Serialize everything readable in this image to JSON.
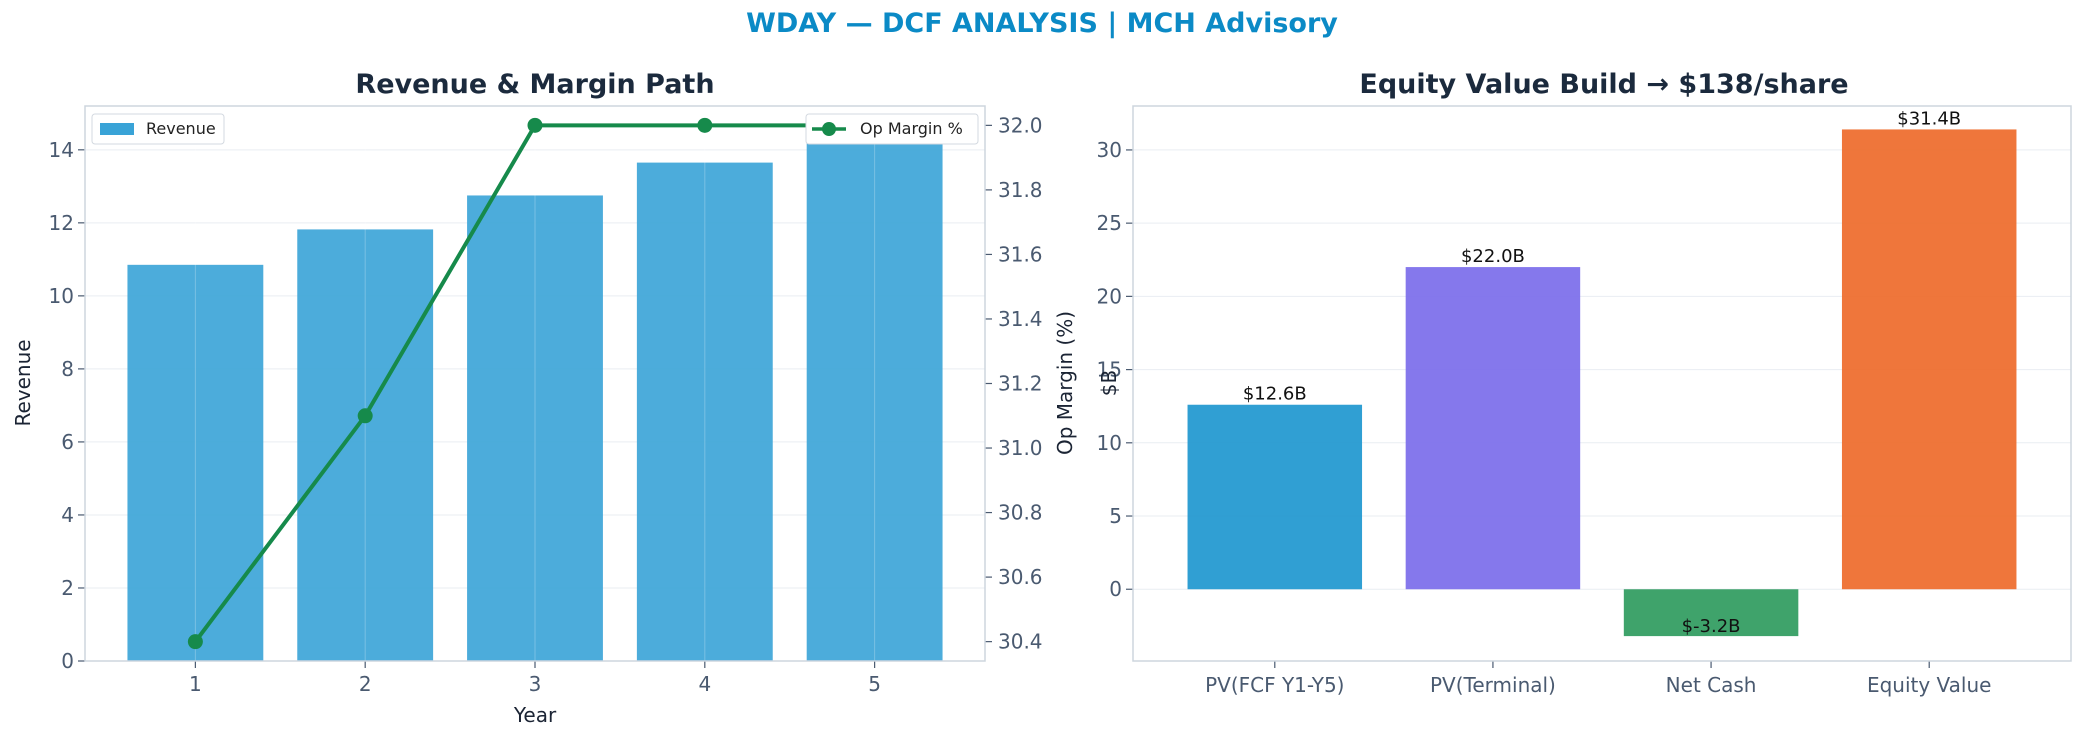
{
  "figure": {
    "title": "WDAY — DCF ANALYSIS | MCH Advisory"
  },
  "chart_data": [
    {
      "type": "bar",
      "title": "Revenue & Margin Path",
      "xlabel": "Year",
      "ylabel": "Revenue",
      "y2label": "Op Margin (%)",
      "categories": [
        "1",
        "2",
        "3",
        "4",
        "5"
      ],
      "ylim": [
        0,
        15.2
      ],
      "yticks": [
        0,
        2,
        4,
        6,
        8,
        10,
        12,
        14
      ],
      "y2lim": [
        30.34,
        32.06
      ],
      "y2ticks": [
        30.4,
        30.6,
        30.8,
        31.0,
        31.2,
        31.4,
        31.6,
        31.8,
        32.0
      ],
      "grid": true,
      "series": [
        {
          "name": "Revenue",
          "type": "bar",
          "axis": "left",
          "color": "#39a3d7",
          "values": [
            10.85,
            11.82,
            12.75,
            13.65,
            14.7
          ]
        },
        {
          "name": "Op Margin %",
          "type": "line",
          "axis": "right",
          "color": "#168a4b",
          "values": [
            30.4,
            31.1,
            32.0,
            32.0,
            32.0
          ]
        }
      ],
      "legend": [
        {
          "label": "Revenue",
          "placement": "top-left"
        },
        {
          "label": "Op Margin %",
          "placement": "top-right"
        }
      ]
    },
    {
      "type": "bar",
      "title": "Equity Value Build → $138/share",
      "xlabel": "",
      "ylabel": "$B",
      "categories": [
        "PV(FCF Y1-Y5)",
        "PV(Terminal)",
        "Net Cash",
        "Equity Value"
      ],
      "values": [
        12.6,
        22.0,
        -3.2,
        31.4
      ],
      "data_labels": [
        "$12.6B",
        "$22.0B",
        "$-3.2B",
        "$31.4B"
      ],
      "colors": [
        "#1e97cf",
        "#7b6cea",
        "#2f9b5e",
        "#ee6a2a"
      ],
      "ylim": [
        -4.9,
        33.0
      ],
      "yticks": [
        0,
        5,
        10,
        15,
        20,
        25,
        30
      ],
      "grid": true
    }
  ]
}
